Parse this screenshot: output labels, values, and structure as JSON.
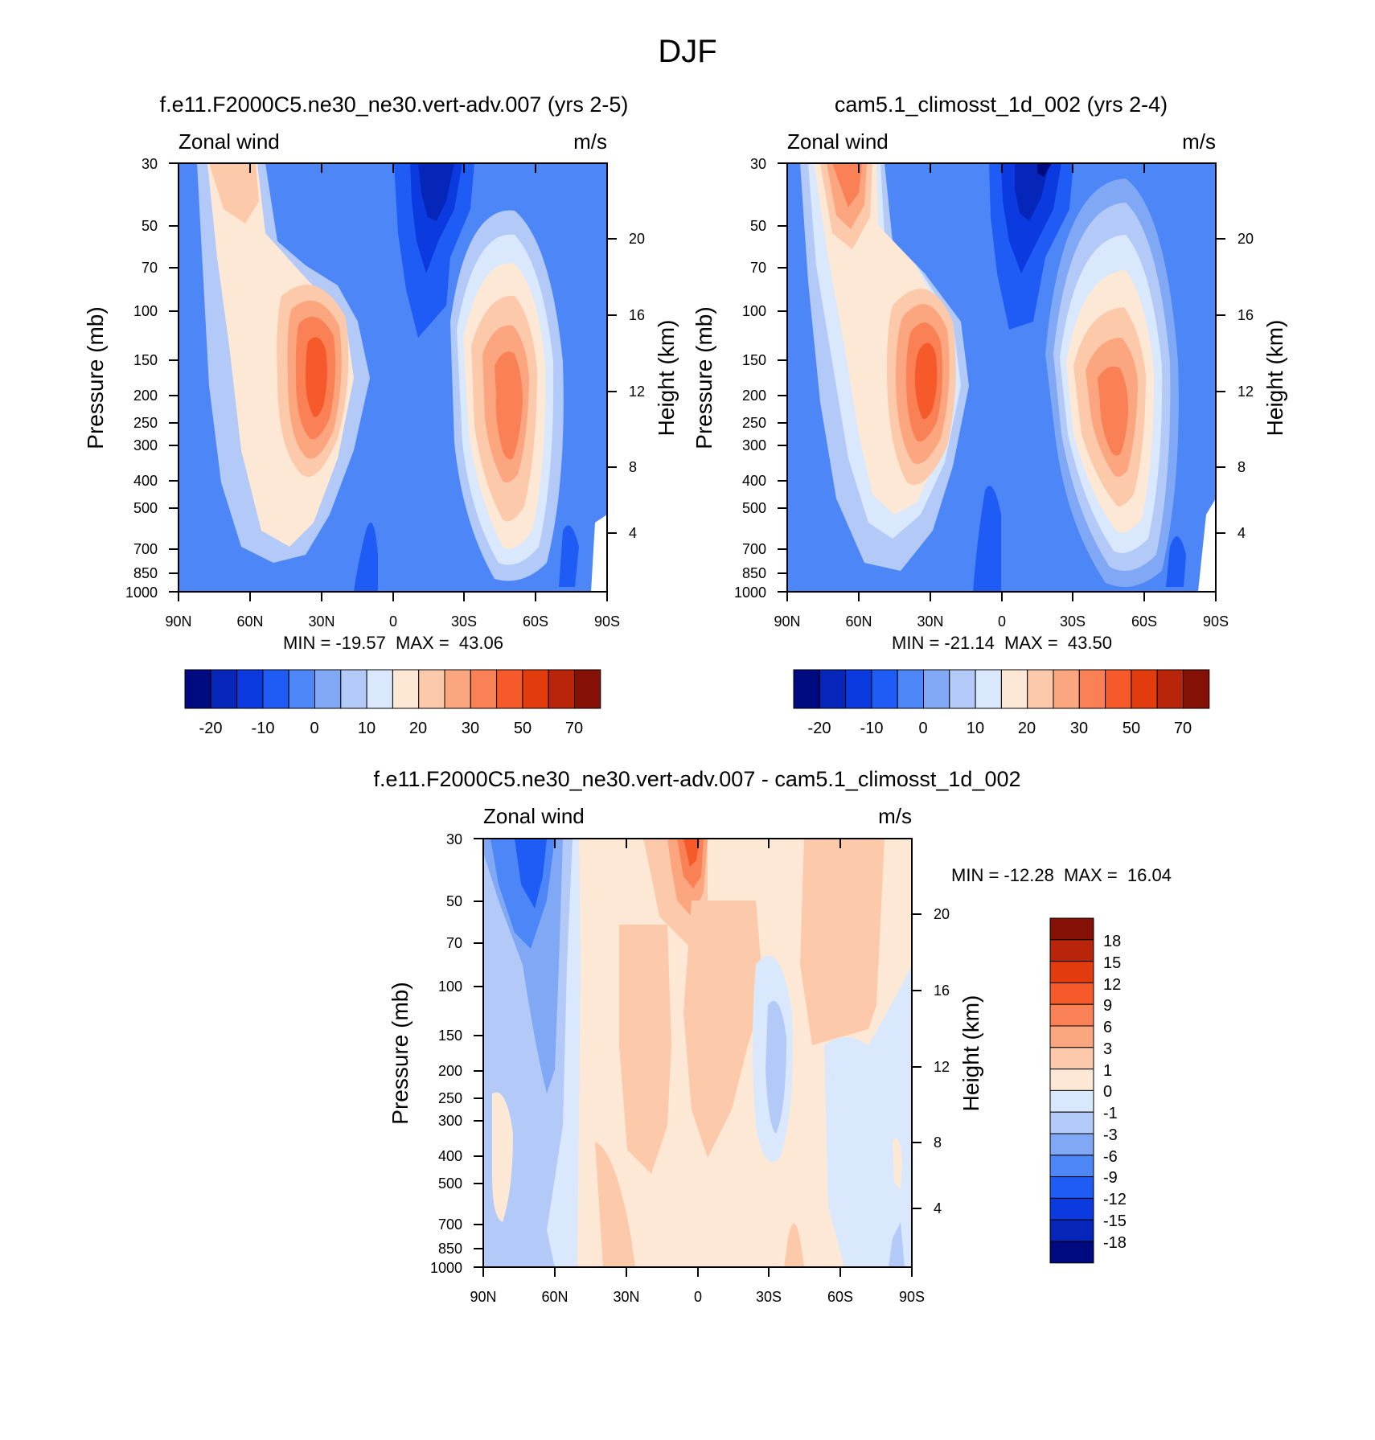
{
  "figure_title": "DJF",
  "chart_data": [
    {
      "type": "heatmap",
      "title": "f.e11.F2000C5.ne30_ne30.vert-adv.007 (yrs 2-5)",
      "variable": "Zonal wind",
      "units": "m/s",
      "ylabel": "Pressure (mb)",
      "ylabel_right": "Height (km)",
      "x_ticks": [
        "90N",
        "60N",
        "30N",
        "0",
        "30S",
        "60S",
        "90S"
      ],
      "x_range": [
        90,
        -90
      ],
      "y_ticks": [
        30,
        50,
        70,
        100,
        150,
        200,
        250,
        300,
        400,
        500,
        700,
        850,
        1000
      ],
      "y_range": [
        30,
        1000
      ],
      "height_ticks": [
        20,
        16,
        12,
        8,
        4
      ],
      "stats": "MIN = -19.57  MAX =  43.06",
      "colorbar": {
        "tick_labels": [
          "-20",
          "-10",
          "0",
          "10",
          "20",
          "30",
          "50",
          "70"
        ],
        "levels": [
          -25,
          -20,
          -15,
          -10,
          -5,
          0,
          5,
          10,
          15,
          20,
          25,
          30,
          40,
          50,
          60,
          70
        ],
        "colors": [
          "#000a80",
          "#0526b8",
          "#0a3ae0",
          "#1f5cf5",
          "#4d86f7",
          "#80a8f5",
          "#b3c9f7",
          "#d9e8fc",
          "#fde8d6",
          "#fcc9ab",
          "#fba67f",
          "#f98155",
          "#f65a2a",
          "#e23c0e",
          "#b8250b",
          "#851006"
        ]
      },
      "features": [
        {
          "type": "jet",
          "lat": 30,
          "p": 200,
          "peak": 43.06
        },
        {
          "type": "jet",
          "lat": -48,
          "p": 210,
          "peak": 33
        },
        {
          "type": "easterly",
          "lat": -12,
          "p": 30,
          "min": -19.57
        }
      ]
    },
    {
      "type": "heatmap",
      "title": "cam5.1_climosst_1d_002 (yrs 2-4)",
      "variable": "Zonal wind",
      "units": "m/s",
      "ylabel": "Pressure (mb)",
      "ylabel_right": "Height (km)",
      "x_ticks": [
        "90N",
        "60N",
        "30N",
        "0",
        "30S",
        "60S",
        "90S"
      ],
      "x_range": [
        90,
        -90
      ],
      "y_ticks": [
        30,
        50,
        70,
        100,
        150,
        200,
        250,
        300,
        400,
        500,
        700,
        850,
        1000
      ],
      "y_range": [
        30,
        1000
      ],
      "height_ticks": [
        20,
        16,
        12,
        8,
        4
      ],
      "stats": "MIN = -21.14  MAX =  43.50",
      "colorbar": {
        "tick_labels": [
          "-20",
          "-10",
          "0",
          "10",
          "20",
          "30",
          "50",
          "70"
        ],
        "levels": [
          -25,
          -20,
          -15,
          -10,
          -5,
          0,
          5,
          10,
          15,
          20,
          25,
          30,
          40,
          50,
          60,
          70
        ],
        "colors": [
          "#000a80",
          "#0526b8",
          "#0a3ae0",
          "#1f5cf5",
          "#4d86f7",
          "#80a8f5",
          "#b3c9f7",
          "#d9e8fc",
          "#fde8d6",
          "#fcc9ab",
          "#fba67f",
          "#f98155",
          "#f65a2a",
          "#e23c0e",
          "#b8250b",
          "#851006"
        ]
      },
      "features": [
        {
          "type": "jet",
          "lat": 30,
          "p": 200,
          "peak": 43.5
        },
        {
          "type": "jet",
          "lat": -50,
          "p": 210,
          "peak": 34
        },
        {
          "type": "easterly",
          "lat": -17,
          "p": 30,
          "min": -21.14
        }
      ]
    },
    {
      "type": "heatmap",
      "title": "f.e11.F2000C5.ne30_ne30.vert-adv.007 - cam5.1_climosst_1d_002",
      "variable": "Zonal wind",
      "units": "m/s",
      "ylabel": "Pressure (mb)",
      "ylabel_right": "Height (km)",
      "x_ticks": [
        "90N",
        "60N",
        "30N",
        "0",
        "30S",
        "60S",
        "90S"
      ],
      "x_range": [
        90,
        -90
      ],
      "y_ticks": [
        30,
        50,
        70,
        100,
        150,
        200,
        250,
        300,
        400,
        500,
        700,
        850,
        1000
      ],
      "y_range": [
        30,
        1000
      ],
      "height_ticks": [
        20,
        16,
        12,
        8,
        4
      ],
      "stats": "MIN = -12.28  MAX =  16.04",
      "colorbar": {
        "tick_labels": [
          "18",
          "15",
          "12",
          "9",
          "6",
          "3",
          "1",
          "0",
          "-1",
          "-3",
          "-6",
          "-9",
          "-12",
          "-15",
          "-18"
        ],
        "levels": [
          -18,
          -15,
          -12,
          -9,
          -6,
          -3,
          -1,
          0,
          1,
          3,
          6,
          9,
          12,
          15,
          18
        ],
        "colors": [
          "#000a80",
          "#0526b8",
          "#0a3ae0",
          "#1f5cf5",
          "#4d86f7",
          "#80a8f5",
          "#b3c9f7",
          "#d9e8fc",
          "#fde8d6",
          "#fcc9ab",
          "#fba67f",
          "#f98155",
          "#f65a2a",
          "#e23c0e",
          "#b8250b",
          "#851006"
        ]
      },
      "features": [
        {
          "type": "diff",
          "lat": 0,
          "p": 30,
          "peak": 16.04
        },
        {
          "type": "diff",
          "lat": 70,
          "p": 40,
          "min": -12.28
        }
      ]
    }
  ]
}
